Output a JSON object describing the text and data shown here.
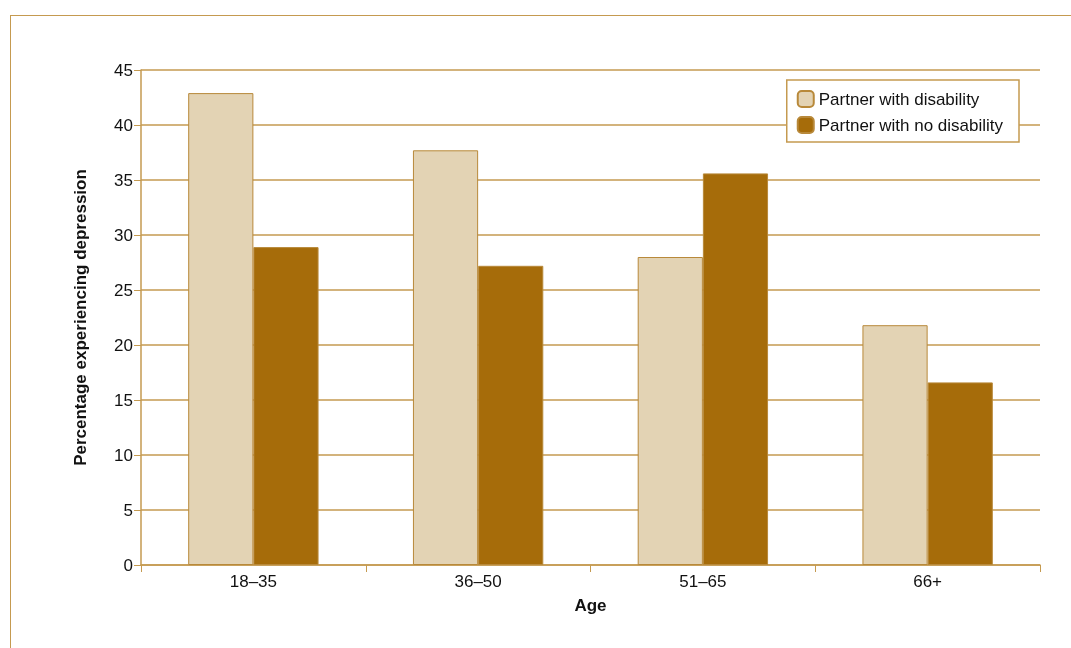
{
  "chart_data": {
    "type": "bar",
    "xlabel": "Age",
    "ylabel": "Percentage experiencing depression",
    "categories": [
      "18–35",
      "36–50",
      "51–65",
      "66+"
    ],
    "series": [
      {
        "name": "Partner with disability",
        "color": "#e3d3b4",
        "values": [
          42.9,
          37.7,
          28.0,
          21.8
        ]
      },
      {
        "name": "Partner with no disability",
        "color": "#a66c0a",
        "values": [
          28.9,
          27.2,
          35.6,
          16.6
        ]
      }
    ],
    "ylim": [
      0,
      45
    ],
    "yticks": [
      0,
      5,
      10,
      15,
      20,
      25,
      30,
      35,
      40,
      45
    ],
    "grid": "y",
    "legend": "top right"
  }
}
